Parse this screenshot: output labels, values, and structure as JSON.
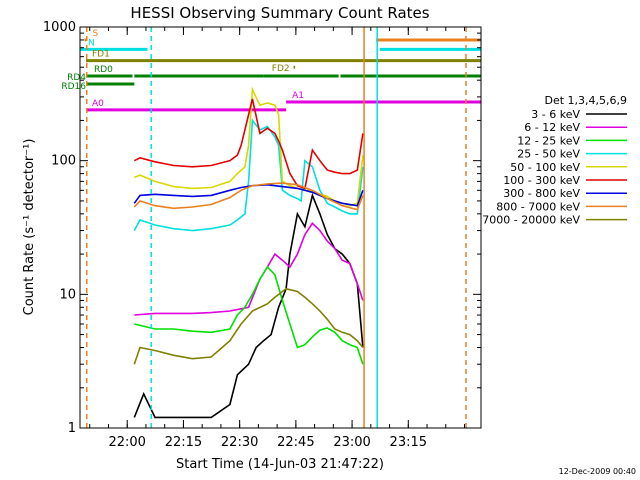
{
  "chart_data": {
    "type": "line",
    "title": "HESSI Observing Summary Count Rates",
    "xlabel": "Start Time (14-Jun-03 21:47:22)",
    "ylabel": "Count Rate (s⁻¹ detector⁻¹)",
    "x_unit": "minutes after 21:47:22",
    "x_range": [
      0,
      107
    ],
    "y_scale": "log",
    "ylim": [
      1,
      1000
    ],
    "x_ticks": [
      {
        "v": 12.6,
        "label": "22:00"
      },
      {
        "v": 27.6,
        "label": "22:15"
      },
      {
        "v": 42.6,
        "label": "22:30"
      },
      {
        "v": 57.6,
        "label": "22:45"
      },
      {
        "v": 72.6,
        "label": "23:00"
      },
      {
        "v": 87.6,
        "label": "23:15"
      }
    ],
    "y_ticks": [
      {
        "v": 1,
        "label": "1"
      },
      {
        "v": 10,
        "label": "10"
      },
      {
        "v": 100,
        "label": "100"
      },
      {
        "v": 1000,
        "label": "1000"
      }
    ],
    "legend": {
      "title": "Det 1,3,4,5,6,9",
      "placement": "right",
      "entries": [
        {
          "label": "3 - 6 keV",
          "color": "#000000"
        },
        {
          "label": "6 - 12 keV",
          "color": "#e000e0"
        },
        {
          "label": "12 - 25 keV",
          "color": "#00e000"
        },
        {
          "label": "25 - 50 keV",
          "color": "#00e0e0"
        },
        {
          "label": "50 - 100 keV",
          "color": "#d8d800"
        },
        {
          "label": "100 - 300 keV",
          "color": "#e00000"
        },
        {
          "label": "300 - 800 keV",
          "color": "#0000e0"
        },
        {
          "label": "800 - 7000 keV",
          "color": "#e88020"
        },
        {
          "label": "7000 - 20000 keV",
          "color": "#808000"
        }
      ]
    },
    "series": [
      {
        "name": "3 - 6 keV",
        "color": "#000000",
        "x": [
          14.5,
          17,
          20,
          25,
          30,
          35,
          40,
          42,
          45,
          47,
          49,
          51,
          53,
          55,
          56,
          58,
          60,
          62,
          64,
          66,
          68,
          70,
          72,
          74,
          75.5
        ],
        "y": [
          1.2,
          1.8,
          1.2,
          1.2,
          1.2,
          1.2,
          1.5,
          2.5,
          3,
          4,
          4.5,
          5,
          8,
          11,
          20,
          40,
          32,
          55,
          40,
          28,
          22,
          20,
          17,
          12,
          4
        ]
      },
      {
        "name": "6 - 12 keV",
        "color": "#e000e0",
        "x": [
          14.5,
          20,
          25,
          30,
          35,
          40,
          43,
          45,
          48,
          50,
          52,
          54,
          56,
          58,
          60,
          62,
          64,
          66,
          68,
          70,
          72,
          74,
          75.5
        ],
        "y": [
          7,
          7.2,
          7.2,
          7.2,
          7.3,
          7.5,
          7.8,
          8,
          13,
          16,
          20,
          18,
          16,
          20,
          28,
          34,
          30,
          25,
          22,
          18,
          17,
          12,
          9
        ]
      },
      {
        "name": "12 - 25 keV",
        "color": "#00e000",
        "x": [
          14.5,
          20,
          25,
          30,
          35,
          40,
          42,
          44,
          46,
          48,
          50,
          52,
          54,
          56,
          58,
          60,
          62,
          64,
          66,
          68,
          70,
          72,
          74,
          75.5
        ],
        "y": [
          6,
          5.5,
          5.5,
          5.3,
          5.2,
          5.5,
          7,
          8,
          10,
          13,
          16,
          14,
          9,
          6,
          4,
          4.2,
          4.8,
          5.4,
          5.6,
          5.2,
          4.5,
          4.2,
          4,
          3
        ]
      },
      {
        "name": "25 - 50 keV",
        "color": "#00e0e0",
        "x": [
          14.5,
          16,
          20,
          25,
          30,
          35,
          40,
          42,
          44,
          45,
          46,
          48,
          50,
          52,
          53,
          54,
          56,
          58,
          59,
          60,
          62,
          64,
          66,
          68,
          70,
          72,
          74,
          75.5
        ],
        "y": [
          30,
          36,
          33,
          31,
          30,
          31,
          33,
          36,
          40,
          70,
          200,
          170,
          180,
          150,
          130,
          60,
          55,
          52,
          50,
          100,
          90,
          60,
          48,
          45,
          42,
          40,
          40,
          90
        ]
      },
      {
        "name": "50 - 100 keV",
        "color": "#d8d800",
        "x": [
          14.5,
          16,
          20,
          25,
          30,
          35,
          40,
          42,
          44,
          45,
          46,
          48,
          50,
          52,
          53,
          54,
          56,
          58,
          60,
          62,
          64,
          66,
          68,
          70,
          72,
          74,
          75.5
        ],
        "y": [
          75,
          78,
          70,
          64,
          62,
          63,
          70,
          80,
          90,
          130,
          340,
          260,
          270,
          260,
          220,
          70,
          65,
          62,
          60,
          60,
          56,
          54,
          50,
          48,
          46,
          48,
          110
        ]
      },
      {
        "name": "100 - 300 keV",
        "color": "#e00000",
        "x": [
          14.5,
          16,
          20,
          25,
          30,
          35,
          40,
          42,
          43,
          44,
          46,
          48,
          50,
          52,
          53,
          54,
          56,
          58,
          60,
          62,
          64,
          66,
          68,
          70,
          72,
          74,
          75.5
        ],
        "y": [
          100,
          105,
          98,
          92,
          90,
          92,
          100,
          110,
          130,
          170,
          290,
          160,
          175,
          160,
          140,
          120,
          80,
          65,
          62,
          120,
          100,
          85,
          82,
          80,
          80,
          85,
          160
        ]
      },
      {
        "name": "300 - 800 keV",
        "color": "#0000e0",
        "x": [
          14.5,
          16,
          20,
          25,
          30,
          35,
          40,
          43,
          46,
          50,
          54,
          58,
          62,
          66,
          70,
          74,
          75.5
        ],
        "y": [
          48,
          55,
          56,
          55,
          54,
          55,
          60,
          63,
          65,
          66,
          64,
          62,
          58,
          52,
          48,
          46,
          60
        ]
      },
      {
        "name": "800 - 7000 keV",
        "color": "#e88020",
        "x": [
          14.5,
          16,
          20,
          25,
          30,
          35,
          40,
          43,
          46,
          50,
          54,
          58,
          62,
          66,
          70,
          74,
          75.5
        ],
        "y": [
          45,
          50,
          46,
          44,
          45,
          47,
          53,
          60,
          65,
          67,
          68,
          66,
          60,
          52,
          46,
          43,
          55
        ]
      },
      {
        "name": "7000 - 20000 keV",
        "color": "#808000",
        "x": [
          14.5,
          16,
          20,
          25,
          30,
          35,
          40,
          43,
          46,
          50,
          52,
          55,
          58,
          60,
          62,
          64,
          66,
          68,
          70,
          72,
          74,
          75.5
        ],
        "y": [
          3,
          4,
          3.8,
          3.5,
          3.3,
          3.4,
          4.5,
          6,
          7.5,
          8.5,
          9.5,
          11,
          10.5,
          9.5,
          8.5,
          7.5,
          6.5,
          5.5,
          5.2,
          5,
          4.5,
          4
        ]
      }
    ],
    "flag_bars": [
      {
        "label": "S",
        "color": "#e88020",
        "segments": [
          [
            1.2,
            1.6
          ],
          [
            79,
            107
          ]
        ],
        "level": 800
      },
      {
        "label": "N",
        "color": "#00e0e0",
        "segments": [
          [
            0,
            18
          ],
          [
            80,
            107
          ]
        ],
        "level": 680
      },
      {
        "label": "FD1",
        "color": "#808000",
        "segments": [
          [
            1.6,
            107
          ]
        ],
        "level": 560
      },
      {
        "label": "FD2",
        "color": "#808000",
        "segments": [
          [
            57,
            57.4
          ]
        ],
        "level": 500
      },
      {
        "label": "RD0",
        "color": "#008000",
        "segments": [
          [
            1.6,
            14
          ],
          [
            14.5,
            49
          ],
          [
            49,
            69
          ],
          [
            69.5,
            107
          ]
        ],
        "level": 430
      },
      {
        "label": "RD4",
        "color": "#008000",
        "segments": [
          [
            1.6,
            14.5
          ]
        ],
        "level": 375
      },
      {
        "label": "RD16",
        "color": "#008000",
        "segments": [
          [
            1.6,
            1.9
          ]
        ],
        "level": 320
      },
      {
        "label": "A0",
        "color": "#e000e0",
        "segments": [
          [
            1.6,
            55
          ]
        ],
        "level": 240
      },
      {
        "label": "A1",
        "color": "#e000e0",
        "segments": [
          [
            55,
            107
          ]
        ],
        "level": 275
      }
    ],
    "vlines": [
      {
        "x": 1.8,
        "color": "#e88020",
        "style": "dashed"
      },
      {
        "x": 19,
        "color": "#00e0e0",
        "style": "dashed"
      },
      {
        "x": 103,
        "color": "#e88020",
        "style": "dashed"
      },
      {
        "x": 75.8,
        "color": "#e88020",
        "style": "solid"
      },
      {
        "x": 79.3,
        "color": "#00e0e0",
        "style": "solid"
      }
    ],
    "footer": "12-Dec-2009 00:40"
  }
}
